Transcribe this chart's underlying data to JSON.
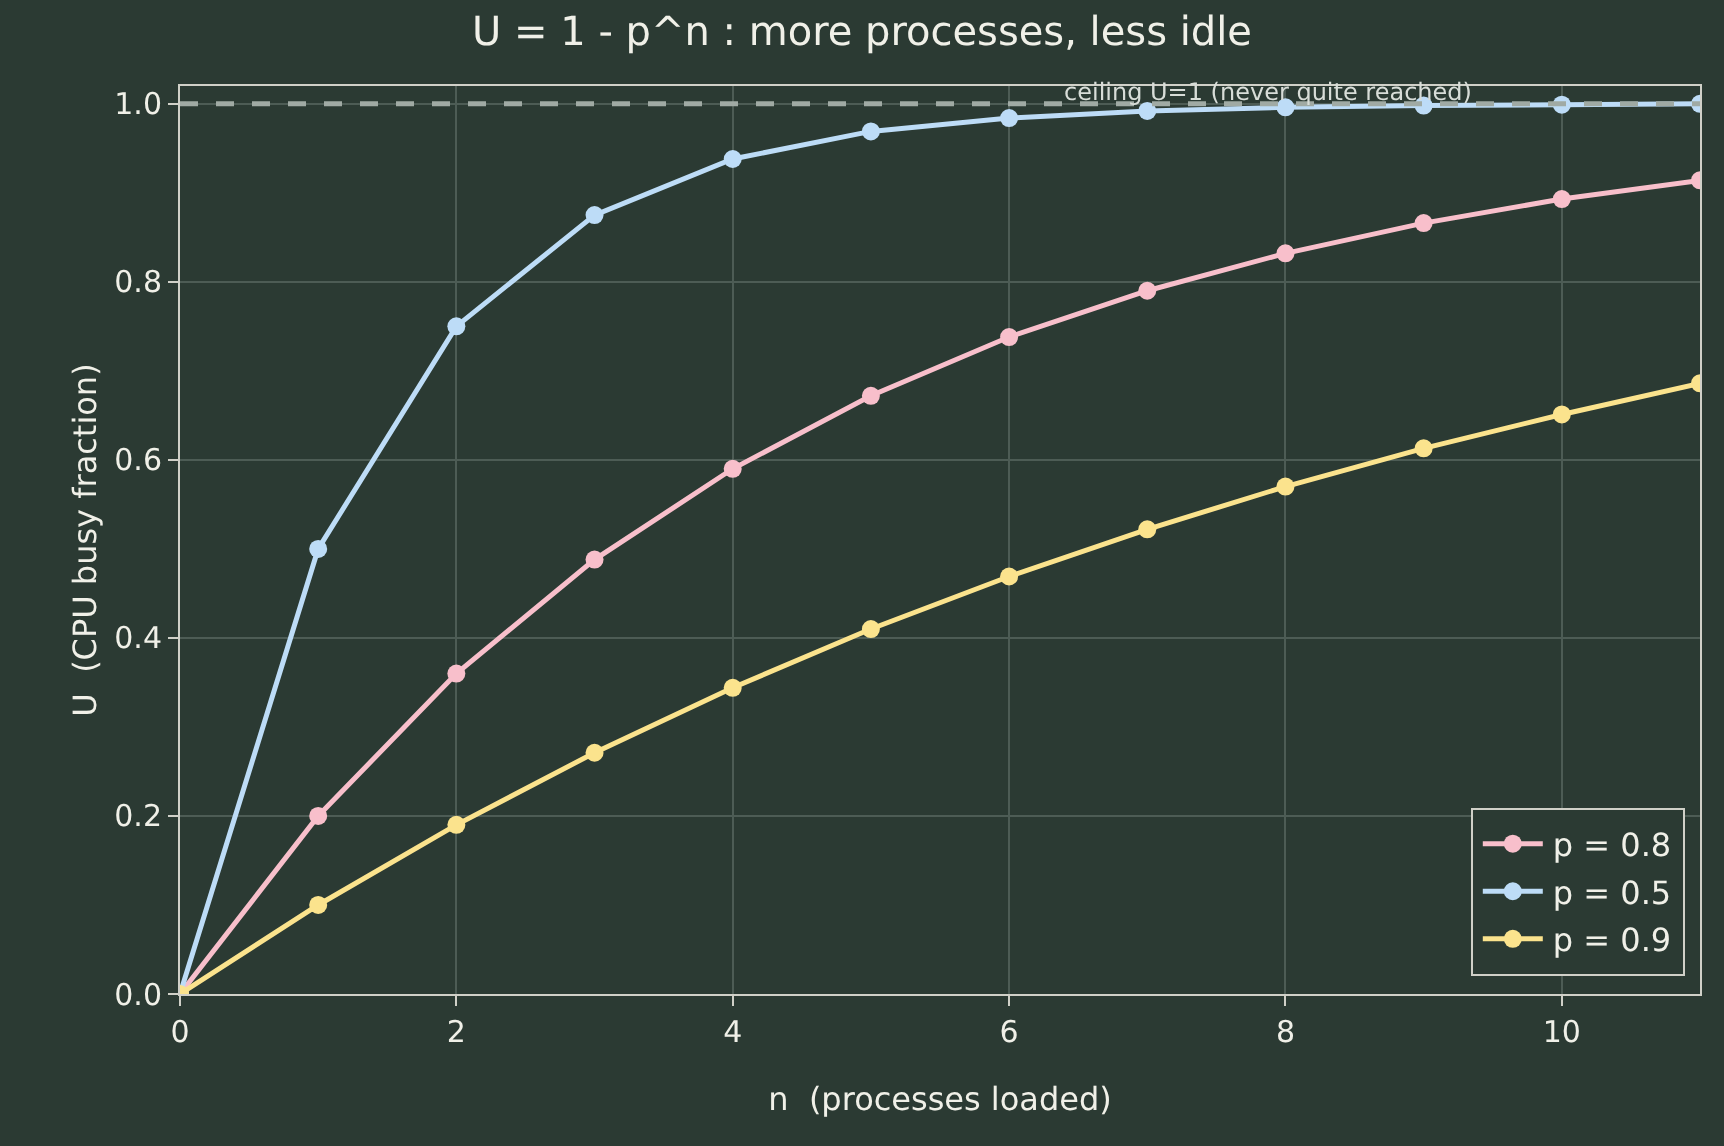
{
  "chart_data": {
    "type": "line",
    "title": "U = 1 - p^n : more processes, less idle",
    "xlabel": "n  (processes loaded)",
    "ylabel": "U  (CPU busy fraction)",
    "x": [
      0,
      1,
      2,
      3,
      4,
      5,
      6,
      7,
      8,
      9,
      10,
      11
    ],
    "series": [
      {
        "name": "p = 0.8",
        "color": "#f8bfcb",
        "values": [
          0,
          0.2,
          0.36,
          0.488,
          0.59,
          0.672,
          0.738,
          0.79,
          0.832,
          0.866,
          0.893,
          0.914
        ]
      },
      {
        "name": "p = 0.5",
        "color": "#bddcf7",
        "values": [
          0,
          0.5,
          0.75,
          0.875,
          0.938,
          0.969,
          0.984,
          0.992,
          0.996,
          0.998,
          0.999,
          1.0
        ]
      },
      {
        "name": "p = 0.9",
        "color": "#fbe38d",
        "values": [
          0,
          0.1,
          0.19,
          0.271,
          0.344,
          0.41,
          0.469,
          0.522,
          0.57,
          0.613,
          0.651,
          0.686
        ]
      }
    ],
    "xlim": [
      0,
      11
    ],
    "xticks": [
      0,
      2,
      4,
      6,
      8,
      10
    ],
    "ylim": [
      0,
      1.02
    ],
    "yticks": [
      {
        "value": 0,
        "label": "0.0"
      },
      {
        "value": 0.2,
        "label": "0.2"
      },
      {
        "value": 0.4,
        "label": "0.4"
      },
      {
        "value": 0.6,
        "label": "0.6"
      },
      {
        "value": 0.8,
        "label": "0.8"
      },
      {
        "value": 1,
        "label": "1.0"
      }
    ],
    "ref_lines": [
      {
        "axis": "y",
        "value": 1,
        "label": "ceiling U=1 (never quite reached)",
        "color": "#a0aaa4",
        "line_style": "dashed"
      }
    ],
    "grid": true,
    "legend": "bottom right",
    "marker": "circle",
    "line_style": "solid"
  }
}
